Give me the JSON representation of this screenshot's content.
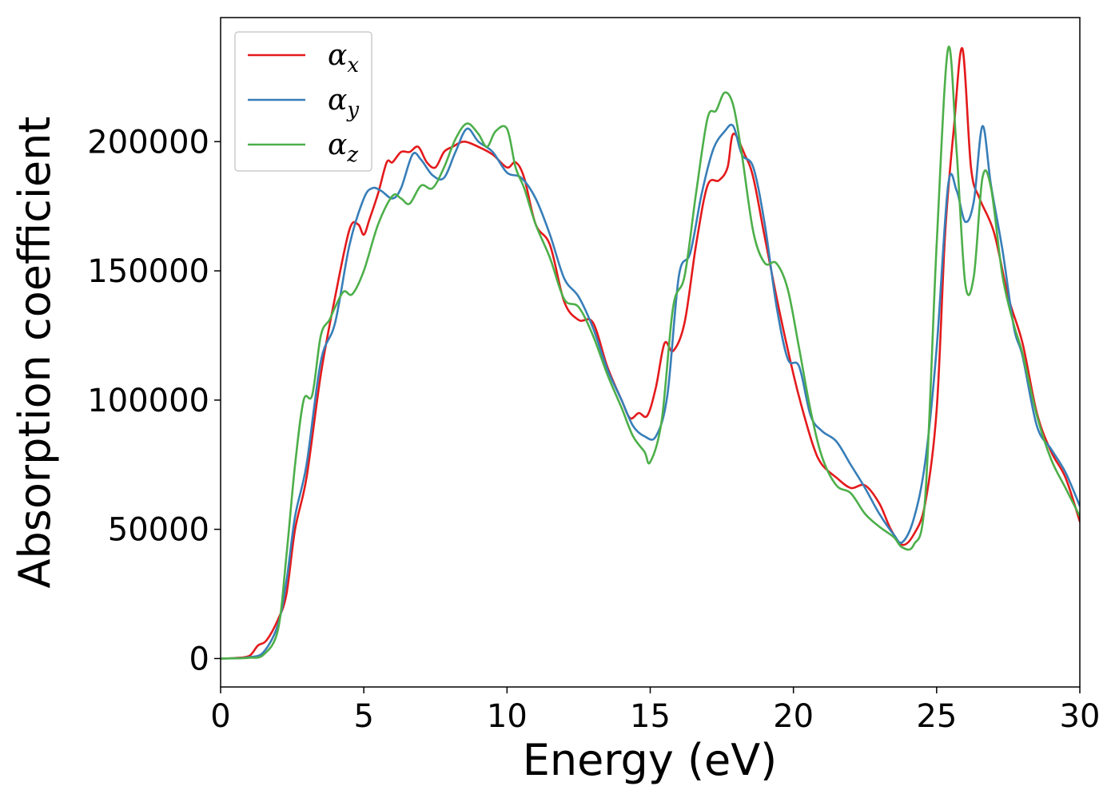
{
  "chart_data": {
    "type": "line",
    "title": "",
    "xlabel": "Energy (eV)",
    "ylabel": "Absorption coefficient",
    "xlim": [
      0,
      30
    ],
    "ylim": [
      -11000,
      248000
    ],
    "xticks": [
      0,
      5,
      10,
      15,
      20,
      25,
      30
    ],
    "yticks": [
      0,
      50000,
      100000,
      150000,
      200000
    ],
    "grid": false,
    "legend_position": "top-left",
    "series": [
      {
        "name": "αx",
        "label_base": "α",
        "label_sub": "x",
        "color": "#e41a1c",
        "x": [
          0,
          0.5,
          1.0,
          1.3,
          1.6,
          2.0,
          2.3,
          2.6,
          3.0,
          3.5,
          4.0,
          4.5,
          4.8,
          5.0,
          5.2,
          5.5,
          5.8,
          6.0,
          6.3,
          6.6,
          6.9,
          7.2,
          7.5,
          7.8,
          8.1,
          8.5,
          9.0,
          9.5,
          10.0,
          10.3,
          10.6,
          11.0,
          11.5,
          12.0,
          12.5,
          13.0,
          13.5,
          14.0,
          14.3,
          14.6,
          14.9,
          15.2,
          15.5,
          15.8,
          16.2,
          16.6,
          17.0,
          17.4,
          17.7,
          17.9,
          18.3,
          18.6,
          19.0,
          19.5,
          20.0,
          20.3,
          20.7,
          21.0,
          21.5,
          22.0,
          22.5,
          23.0,
          23.4,
          23.8,
          24.2,
          24.6,
          25.0,
          25.3,
          25.6,
          25.9,
          26.2,
          26.5,
          27.0,
          27.5,
          28.0,
          28.5,
          29.0,
          29.5,
          30.0
        ],
        "y": [
          0,
          200,
          1000,
          5000,
          7000,
          15000,
          25000,
          50000,
          70000,
          110000,
          140000,
          166000,
          168000,
          164000,
          170000,
          180000,
          192000,
          192000,
          196000,
          196000,
          198000,
          192000,
          190000,
          196000,
          198000,
          200000,
          198000,
          195000,
          190000,
          192000,
          186000,
          168000,
          160000,
          138000,
          131000,
          130000,
          113000,
          100000,
          93000,
          95000,
          94000,
          105000,
          122000,
          119000,
          130000,
          160000,
          183000,
          185000,
          190000,
          203000,
          195000,
          186000,
          163000,
          135000,
          110000,
          97000,
          82000,
          75000,
          70000,
          66000,
          67000,
          60000,
          50000,
          44000,
          48000,
          60000,
          96000,
          165000,
          205000,
          236000,
          190000,
          178000,
          165000,
          140000,
          122000,
          95000,
          80000,
          70000,
          53000
        ]
      },
      {
        "name": "αy",
        "label_base": "α",
        "label_sub": "y",
        "color": "#377eb8",
        "x": [
          0,
          0.5,
          1.0,
          1.5,
          2.0,
          2.3,
          2.6,
          3.0,
          3.5,
          4.0,
          4.5,
          5.0,
          5.3,
          5.6,
          6.0,
          6.3,
          6.7,
          7.0,
          7.4,
          7.8,
          8.2,
          8.6,
          9.0,
          9.5,
          10.0,
          10.5,
          11.0,
          11.5,
          12.0,
          12.5,
          13.0,
          13.5,
          14.0,
          14.4,
          14.8,
          15.2,
          15.6,
          16.0,
          16.4,
          16.8,
          17.2,
          17.6,
          17.9,
          18.2,
          18.6,
          19.0,
          19.4,
          19.8,
          20.2,
          20.6,
          21.0,
          21.5,
          22.0,
          22.5,
          23.0,
          23.5,
          23.8,
          24.2,
          24.6,
          25.0,
          25.4,
          25.7,
          26.0,
          26.3,
          26.6,
          26.9,
          27.3,
          27.7,
          28.0,
          28.5,
          29.0,
          29.5,
          30.0
        ],
        "y": [
          0,
          100,
          500,
          2500,
          13000,
          30000,
          55000,
          75000,
          115000,
          130000,
          160000,
          178000,
          182000,
          181000,
          178000,
          182000,
          195000,
          193000,
          187000,
          186000,
          196000,
          205000,
          200000,
          196000,
          188000,
          186000,
          178000,
          164000,
          147000,
          140000,
          128000,
          112000,
          100000,
          90000,
          86000,
          86000,
          102000,
          148000,
          157000,
          180000,
          197000,
          204000,
          206000,
          195000,
          190000,
          168000,
          137000,
          116000,
          113000,
          94000,
          88000,
          84000,
          75000,
          66000,
          56000,
          48000,
          45000,
          54000,
          76000,
          120000,
          183000,
          181000,
          169000,
          177000,
          206000,
          183000,
          158000,
          128000,
          117000,
          90000,
          81000,
          72000,
          59000
        ]
      },
      {
        "name": "αz",
        "label_base": "α",
        "label_sub": "z",
        "color": "#4daf4a",
        "x": [
          0,
          0.5,
          1.0,
          1.5,
          2.0,
          2.3,
          2.6,
          2.9,
          3.2,
          3.5,
          3.8,
          4.0,
          4.3,
          4.6,
          5.0,
          5.5,
          6.0,
          6.3,
          6.6,
          7.0,
          7.4,
          7.8,
          8.2,
          8.6,
          9.0,
          9.3,
          9.6,
          10.0,
          10.3,
          10.6,
          11.0,
          11.5,
          12.0,
          12.5,
          13.0,
          13.5,
          14.0,
          14.4,
          14.8,
          15.0,
          15.4,
          15.8,
          16.2,
          16.6,
          17.0,
          17.3,
          17.6,
          17.9,
          18.2,
          18.6,
          19.0,
          19.4,
          19.8,
          20.2,
          20.6,
          21.0,
          21.5,
          22.0,
          22.5,
          23.0,
          23.5,
          23.8,
          24.2,
          24.6,
          25.0,
          25.4,
          25.7,
          26.0,
          26.3,
          26.6,
          26.9,
          27.3,
          27.7,
          28.0,
          28.5,
          29.0,
          29.5,
          30.0
        ],
        "y": [
          0,
          100,
          300,
          1500,
          11000,
          40000,
          75000,
          100000,
          102000,
          125000,
          131000,
          136000,
          142000,
          141000,
          150000,
          168000,
          179000,
          178000,
          176000,
          183000,
          182000,
          190000,
          201000,
          207000,
          203000,
          198000,
          204000,
          205000,
          190000,
          182000,
          168000,
          155000,
          139000,
          136000,
          125000,
          110000,
          97000,
          86000,
          80000,
          76000,
          92000,
          136000,
          148000,
          180000,
          209000,
          212000,
          219000,
          214000,
          195000,
          165000,
          153000,
          153000,
          143000,
          120000,
          96000,
          78000,
          67000,
          64000,
          56000,
          51000,
          47000,
          43000,
          44000,
          62000,
          160000,
          236000,
          196000,
          145000,
          148000,
          186000,
          182000,
          148000,
          129000,
          118000,
          94000,
          77000,
          66000,
          55000
        ]
      }
    ]
  }
}
